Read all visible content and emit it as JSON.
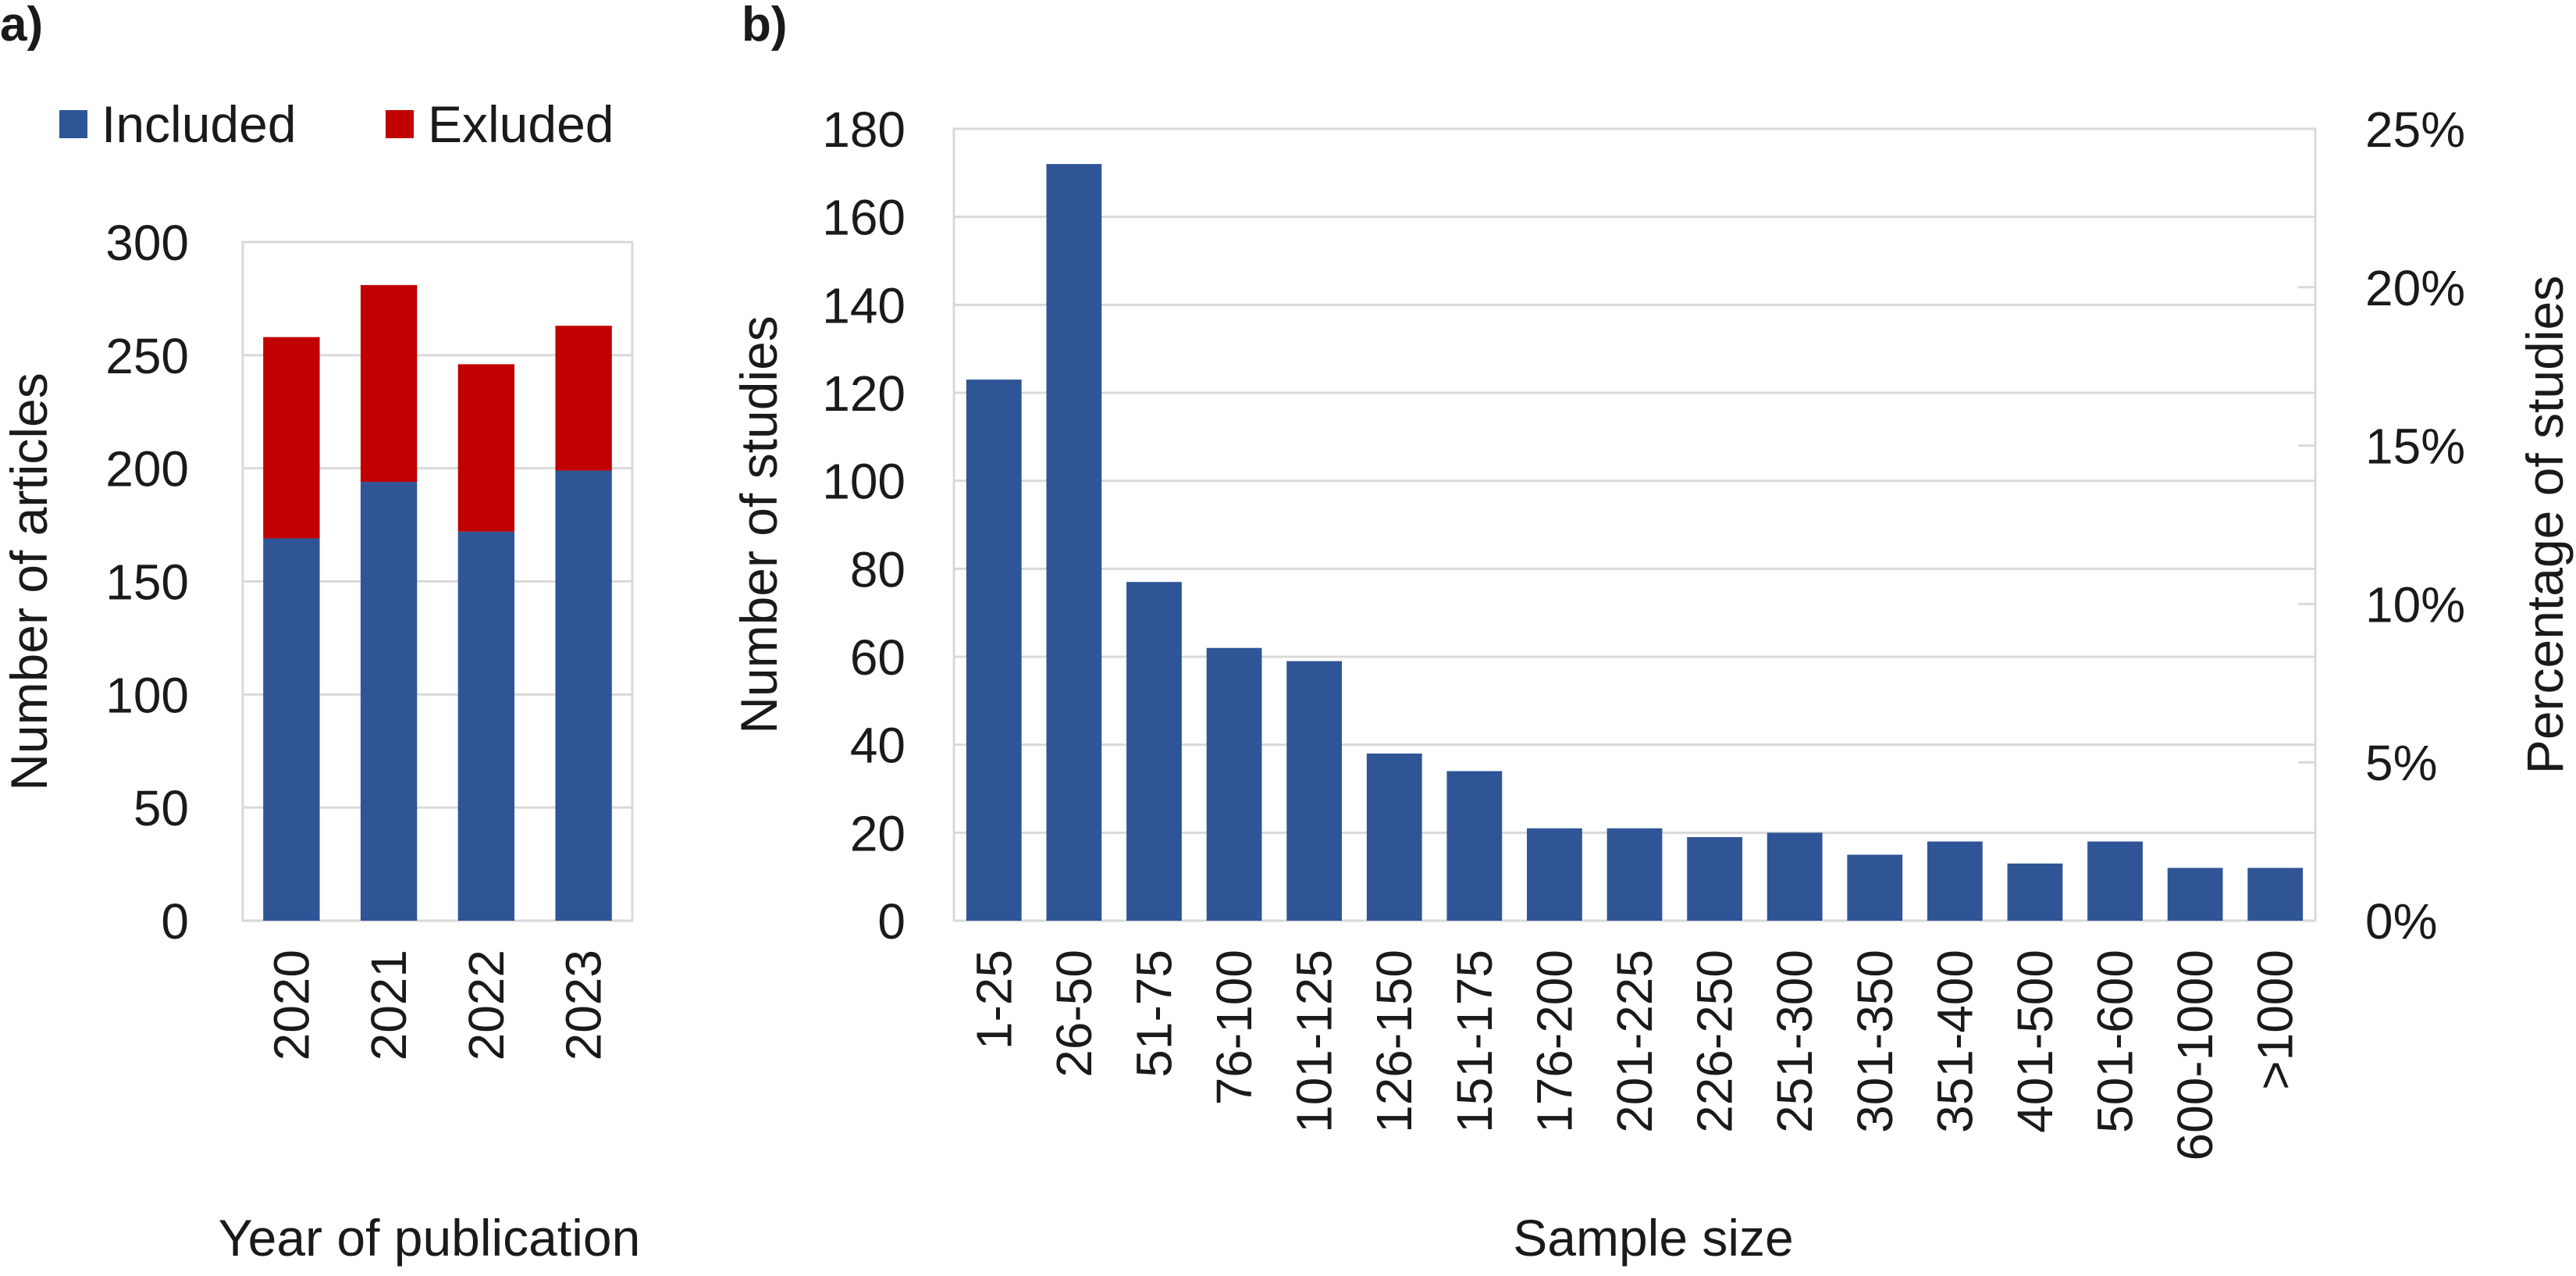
{
  "chart_data": [
    {
      "panel": "a)",
      "type": "bar",
      "stacked": true,
      "categories": [
        "2020",
        "2021",
        "2022",
        "2023"
      ],
      "series": [
        {
          "name": "Included",
          "color": "#2f5597",
          "values": [
            169,
            194,
            172,
            199
          ]
        },
        {
          "name": "Exluded",
          "color": "#c00000",
          "values": [
            89,
            87,
            74,
            64
          ]
        }
      ],
      "xlabel": "Year of publication",
      "ylabel": "Number of articles",
      "ylim": [
        0,
        300
      ],
      "yticks": [
        "0",
        "50",
        "100",
        "150",
        "200",
        "250",
        "300"
      ],
      "grid": true,
      "legend": "top"
    },
    {
      "panel": "b)",
      "type": "bar",
      "categories": [
        "1-25",
        "26-50",
        "51-75",
        "76-100",
        "101-125",
        "126-150",
        "151-175",
        "176-200",
        "201-225",
        "226-250",
        "251-300",
        "301-350",
        "351-400",
        "401-500",
        "501-600",
        "600-1000",
        ">1000"
      ],
      "series": [
        {
          "color": "#2f5597",
          "values": [
            123,
            172,
            77,
            62,
            59,
            38,
            34,
            21,
            21,
            19,
            20,
            15,
            18,
            13,
            18,
            12,
            12
          ]
        }
      ],
      "xlabel": "Sample size",
      "ylabel": "Number of studies",
      "ylim": [
        0,
        180
      ],
      "yticks": [
        "0",
        "20",
        "40",
        "60",
        "80",
        "100",
        "120",
        "140",
        "160",
        "180"
      ],
      "y2label": "Percentage of studies",
      "y2lim": [
        0,
        0.25
      ],
      "y2ticks": [
        "0%",
        "5%",
        "10%",
        "15%",
        "20%",
        "25%"
      ],
      "grid": true,
      "legend": "none"
    }
  ]
}
